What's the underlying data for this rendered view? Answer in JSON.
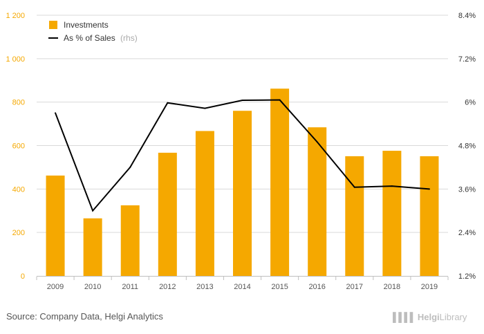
{
  "chart_data": {
    "type": "bar+line",
    "categories": [
      "2009",
      "2010",
      "2011",
      "2012",
      "2013",
      "2014",
      "2015",
      "2016",
      "2017",
      "2018",
      "2019"
    ],
    "series": [
      {
        "name": "Investments",
        "type": "bar",
        "axis": "left",
        "values": [
          462,
          265,
          325,
          567,
          667,
          760,
          862,
          684,
          551,
          576,
          551
        ]
      },
      {
        "name": "As % of Sales",
        "suffix": "(rhs)",
        "type": "line",
        "axis": "right",
        "values": [
          5.7,
          3.0,
          4.2,
          5.98,
          5.83,
          6.05,
          6.06,
          4.9,
          3.65,
          3.68,
          3.6
        ]
      }
    ],
    "left_axis": {
      "ticks": [
        "0",
        "200",
        "400",
        "600",
        "800",
        "1 000",
        "1 200"
      ],
      "ylim": [
        0,
        1200
      ]
    },
    "right_axis": {
      "ticks": [
        "1.2%",
        "2.4%",
        "3.6%",
        "4.8%",
        "6%",
        "7.2%",
        "8.4%"
      ],
      "ylim": [
        1.2,
        8.4
      ]
    },
    "grid": "horizontal",
    "legend": "top-left"
  },
  "colors": {
    "bar": "#f5a800",
    "line": "#000000",
    "grid": "#d9d9d9"
  },
  "source": "Source: Company Data, Helgi Analytics",
  "logo": {
    "mark": "▌▌▌▌",
    "part1": "Helgi",
    "part2": "Library"
  }
}
